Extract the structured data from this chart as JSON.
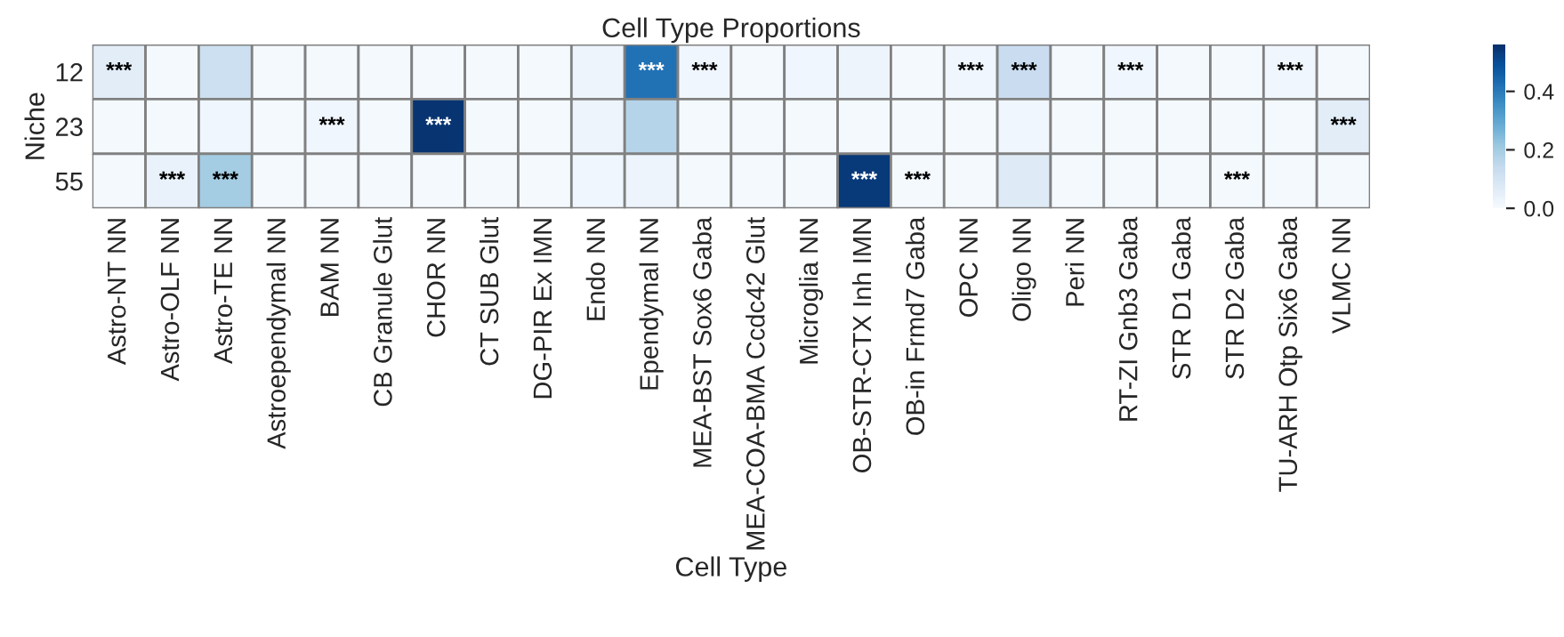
{
  "chart_data": {
    "type": "heatmap",
    "title": "Cell Type Proportions",
    "xlabel": "Cell Type",
    "ylabel": "Niche",
    "categories": [
      "Astro-NT NN",
      "Astro-OLF NN",
      "Astro-TE NN",
      "Astroependymal NN",
      "BAM NN",
      "CB Granule Glut",
      "CHOR NN",
      "CT SUB Glut",
      "DG-PIR Ex IMN",
      "Endo NN",
      "Ependymal NN",
      "MEA-BST Sox6 Gaba",
      "MEA-COA-BMA Ccdc42 Glut",
      "Microglia NN",
      "OB-STR-CTX Inh IMN",
      "OB-in Frmd7 Gaba",
      "OPC NN",
      "Oligo NN",
      "Peri NN",
      "RT-ZI Gnb3 Gaba",
      "STR D1 Gaba",
      "STR D2 Gaba",
      "TU-ARH Otp Six6 Gaba",
      "VLMC NN"
    ],
    "y_categories": [
      "12",
      "23",
      "55"
    ],
    "cells": [
      [
        0.06,
        0.01,
        0.12,
        0.01,
        0.01,
        0.01,
        0.01,
        0.01,
        0.01,
        0.03,
        0.42,
        0.02,
        0.01,
        0.02,
        0.03,
        0.01,
        0.02,
        0.13,
        0.01,
        0.02,
        0.01,
        0.01,
        0.02,
        0.01
      ],
      [
        0.01,
        0.01,
        0.02,
        0.01,
        0.02,
        0.01,
        0.55,
        0.01,
        0.01,
        0.03,
        0.17,
        0.01,
        0.01,
        0.01,
        0.01,
        0.01,
        0.01,
        0.02,
        0.01,
        0.01,
        0.01,
        0.01,
        0.01,
        0.06
      ],
      [
        0.01,
        0.04,
        0.2,
        0.01,
        0.01,
        0.01,
        0.01,
        0.01,
        0.01,
        0.02,
        0.03,
        0.01,
        0.01,
        0.01,
        0.54,
        0.01,
        0.01,
        0.07,
        0.01,
        0.01,
        0.01,
        0.01,
        0.01,
        0.01
      ]
    ],
    "cell_labels": [
      [
        "***",
        null,
        null,
        null,
        null,
        null,
        null,
        null,
        null,
        null,
        "***",
        "***",
        null,
        null,
        null,
        null,
        "***",
        "***",
        null,
        "***",
        null,
        null,
        "***",
        null
      ],
      [
        null,
        null,
        null,
        null,
        "***",
        null,
        "***",
        null,
        null,
        null,
        null,
        null,
        null,
        null,
        null,
        null,
        null,
        null,
        null,
        null,
        null,
        null,
        null,
        "***"
      ],
      [
        null,
        "***",
        "***",
        null,
        null,
        null,
        null,
        null,
        null,
        null,
        null,
        null,
        null,
        null,
        "***",
        "***",
        null,
        null,
        null,
        null,
        null,
        "***",
        null,
        null
      ]
    ],
    "clim": [
      0,
      0.56
    ],
    "cticks": [
      {
        "value": 0,
        "label": "0.0"
      },
      {
        "value": 0.2,
        "label": "0.2"
      },
      {
        "value": 0.4,
        "label": "0.4"
      }
    ]
  }
}
